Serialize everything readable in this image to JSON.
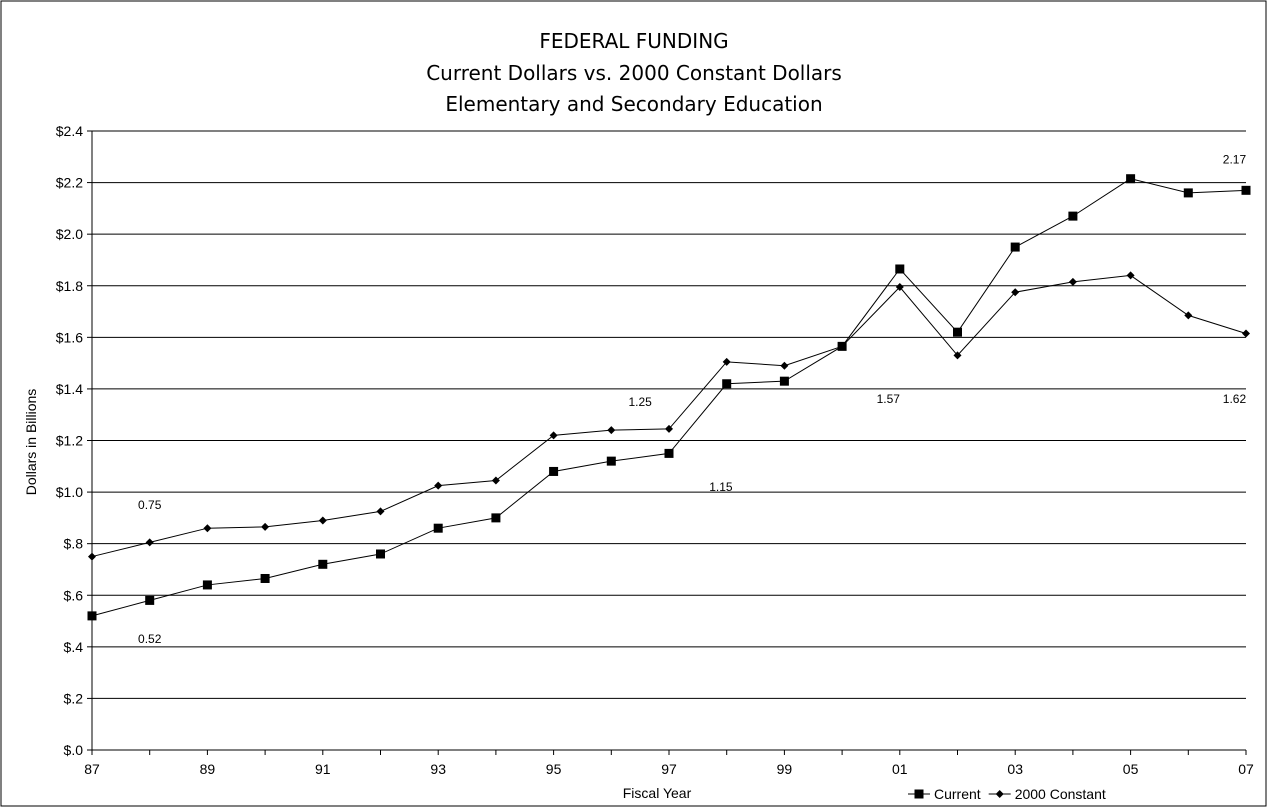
{
  "chart_data": {
    "type": "line",
    "title": [
      "FEDERAL FUNDING",
      "Current Dollars vs. 2000 Constant Dollars",
      "Elementary and Secondary Education"
    ],
    "xlabel": "Fiscal Year",
    "ylabel": "Dollars in Billions",
    "ylim": [
      0,
      2.4
    ],
    "y_tick_labels": [
      "$.0",
      "$.2",
      "$.4",
      "$.6",
      "$.8",
      "$1.0",
      "$1.2",
      "$1.4",
      "$1.6",
      "$1.8",
      "$2.0",
      "$2.2",
      "$2.4"
    ],
    "x": [
      "87",
      "88",
      "89",
      "90",
      "91",
      "92",
      "93",
      "94",
      "95",
      "96",
      "97",
      "98",
      "99",
      "00",
      "01",
      "02",
      "03",
      "04",
      "05",
      "06",
      "07"
    ],
    "x_tick_labels": [
      "87",
      "89",
      "91",
      "93",
      "95",
      "97",
      "99",
      "01",
      "03",
      "05",
      "07"
    ],
    "grid": true,
    "legend_position": "bottom-right",
    "series": [
      {
        "name": "Current",
        "marker": "square",
        "values": [
          0.52,
          0.58,
          0.64,
          0.665,
          0.72,
          0.76,
          0.86,
          0.9,
          1.08,
          1.12,
          1.15,
          1.42,
          1.43,
          1.565,
          1.865,
          1.62,
          1.95,
          2.07,
          2.215,
          2.16,
          2.17
        ]
      },
      {
        "name": "2000 Constant",
        "marker": "diamond",
        "values": [
          0.75,
          0.805,
          0.86,
          0.865,
          0.89,
          0.925,
          1.025,
          1.045,
          1.22,
          1.24,
          1.245,
          1.505,
          1.49,
          1.565,
          1.795,
          1.53,
          1.775,
          1.815,
          1.84,
          1.685,
          1.615
        ]
      }
    ],
    "annotations": [
      {
        "text": "0.75",
        "x": "88",
        "y": 0.95
      },
      {
        "text": "0.52",
        "x": "88",
        "y": 0.43
      },
      {
        "text": "1.25",
        "x": "96.5",
        "y": 1.35
      },
      {
        "text": "1.15",
        "x": "97.9",
        "y": 1.02
      },
      {
        "text": "1.57",
        "x": "00.8",
        "y": 1.36
      },
      {
        "text": "2.17",
        "x": "06.8",
        "y": 2.29
      },
      {
        "text": "1.62",
        "x": "06.8",
        "y": 1.36
      }
    ]
  }
}
